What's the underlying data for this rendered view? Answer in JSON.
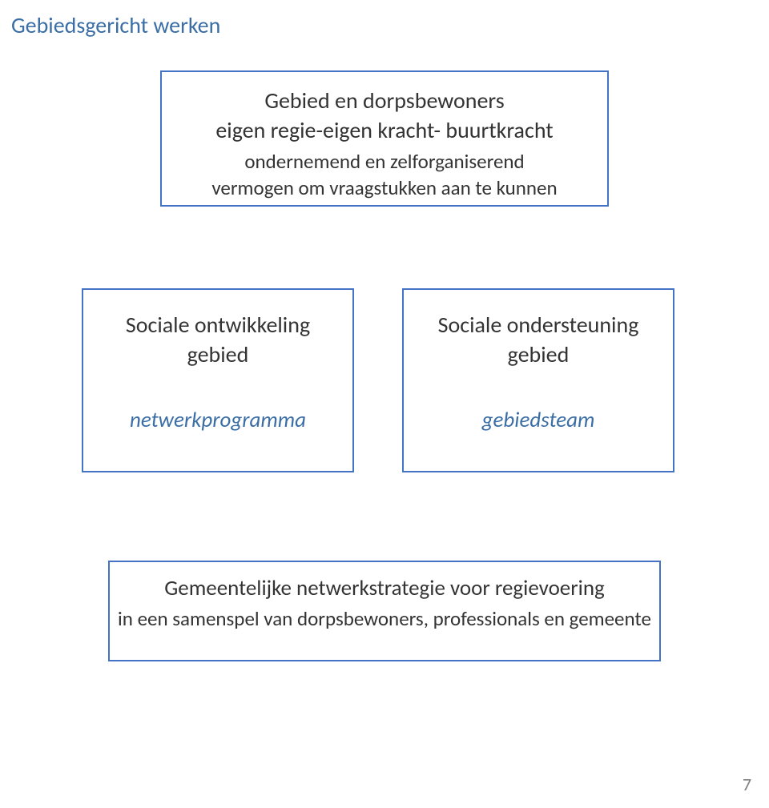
{
  "title": {
    "text": "Gebiedsgericht werken",
    "color": "#3b6ea5",
    "font_size": 28
  },
  "boxes": {
    "border_color": "#4472c4",
    "border_width": 2,
    "text_color": "#333333",
    "italic_color": "#3b6ea5",
    "top": {
      "line1": "Gebied en dorpsbewoners",
      "line2": "eigen regie-eigen kracht- buurtkracht",
      "line3": "ondernemend en zelforganiserend",
      "line4": "vermogen om vraagstukken aan te kunnen"
    },
    "mid_left": {
      "line1": "Sociale ontwikkeling",
      "line2": "gebied",
      "italic": "netwerkprogramma"
    },
    "mid_right": {
      "line1": "Sociale ondersteuning",
      "line2": "gebied",
      "italic": "gebiedsteam"
    },
    "bottom": {
      "line1": "Gemeentelijke netwerkstrategie voor regievoering",
      "line2": "in een samenspel van dorpsbewoners, professionals en gemeente"
    }
  },
  "page_number": "7",
  "page_number_color": "#7f7f7f",
  "background_color": "#ffffff"
}
